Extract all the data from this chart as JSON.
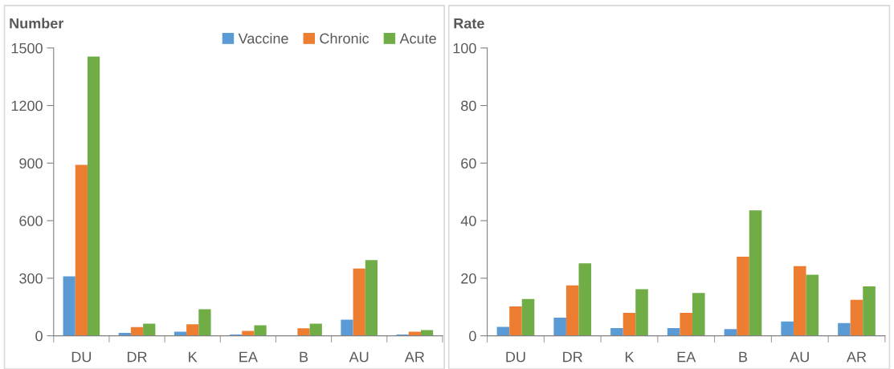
{
  "chart_data": [
    {
      "type": "bar",
      "title": "Number",
      "categories": [
        "DU",
        "DR",
        "K",
        "EA",
        "B",
        "AU",
        "AR"
      ],
      "ylim": [
        0,
        1500
      ],
      "yticks": [
        0,
        300,
        600,
        900,
        1200,
        1500
      ],
      "grid": false,
      "legend": "top right",
      "series": [
        {
          "name": "Vaccine",
          "color": "#5b9bd5",
          "values": [
            310,
            15,
            21,
            7,
            null,
            84,
            7
          ]
        },
        {
          "name": "Chronic",
          "color": "#ed7d31",
          "values": [
            891,
            45,
            60,
            25,
            39,
            351,
            21
          ]
        },
        {
          "name": "Acute",
          "color": "#70ad47",
          "values": [
            1455,
            63,
            138,
            55,
            63,
            394,
            30
          ]
        }
      ]
    },
    {
      "type": "bar",
      "title": "Rate",
      "categories": [
        "DU",
        "DR",
        "K",
        "EA",
        "B",
        "AU",
        "AR"
      ],
      "ylim": [
        0,
        100
      ],
      "yticks": [
        0,
        20,
        40,
        60,
        80,
        100
      ],
      "grid": false,
      "series": [
        {
          "color": "#5b9bd5",
          "values": [
            3.1,
            6.3,
            2.7,
            2.7,
            2.3,
            5.0,
            4.4
          ]
        },
        {
          "color": "#ed7d31",
          "values": [
            10.2,
            17.5,
            8.0,
            8.0,
            27.5,
            24.2,
            12.5
          ]
        },
        {
          "color": "#70ad47",
          "values": [
            12.8,
            25.2,
            16.2,
            14.9,
            43.6,
            21.2,
            17.2
          ]
        }
      ]
    }
  ]
}
